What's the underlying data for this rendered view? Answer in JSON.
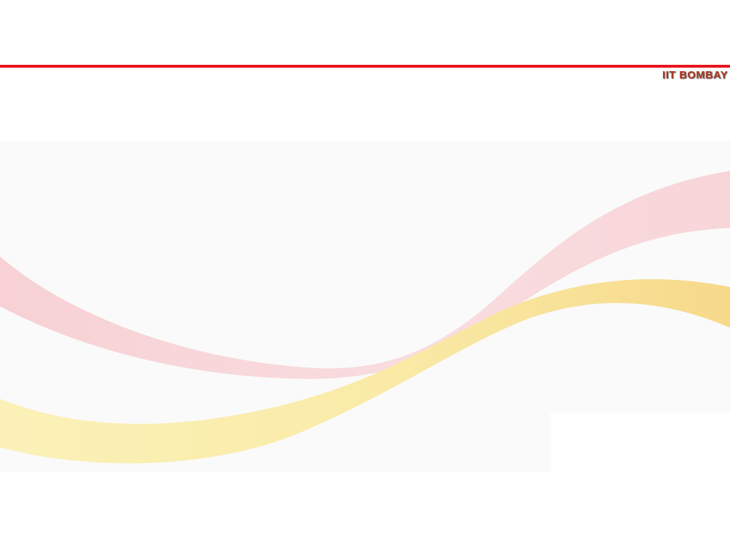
{
  "brand": {
    "text": "IIT BOMBAY"
  },
  "colors": {
    "header_rule": "#e8141c",
    "brand_text": "#a8361e",
    "panel_background": "#fafafa",
    "wave_pink": "#f8d3d6",
    "wave_yellow": "#f8e08a",
    "wave_yellow_light": "#fbf1b8"
  }
}
